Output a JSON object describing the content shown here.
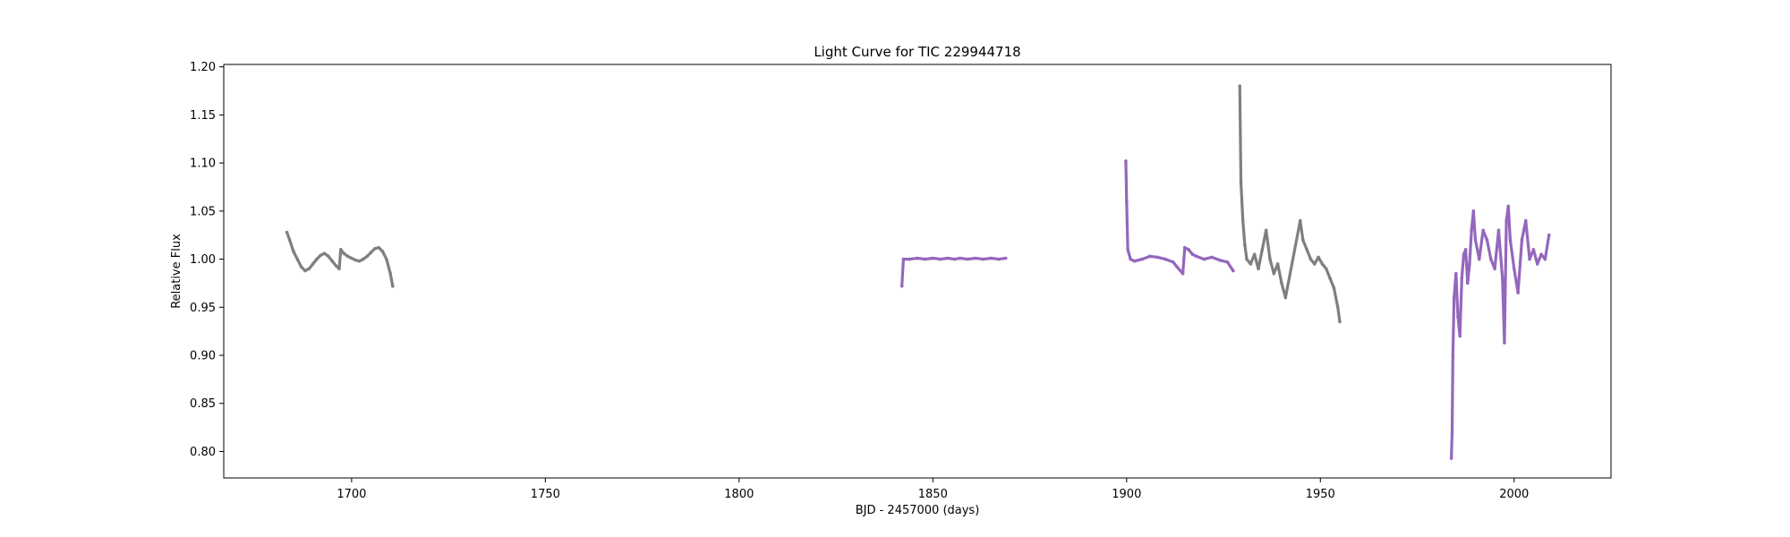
{
  "chart_data": {
    "type": "scatter",
    "title": "Light Curve for TIC 229944718",
    "xlabel": "BJD - 2457000 (days)",
    "ylabel": "Relative Flux",
    "xlim": [
      1667,
      2025
    ],
    "ylim": [
      0.7725,
      1.2025
    ],
    "xticks": [
      1700,
      1750,
      1800,
      1850,
      1900,
      1950,
      2000
    ],
    "yticks": [
      0.8,
      0.85,
      0.9,
      0.95,
      1.0,
      1.05,
      1.1,
      1.15,
      1.2
    ],
    "grid": false,
    "legend": "none",
    "colors": {
      "gray": "#7f7f7f",
      "purple": "#9467bd",
      "axis": "#000000"
    },
    "series": [
      {
        "color": "gray",
        "points": [
          [
            1683.3,
            1.028
          ],
          [
            1684.0,
            1.02
          ],
          [
            1685.0,
            1.008
          ],
          [
            1686.0,
            1.0
          ],
          [
            1687.0,
            0.992
          ],
          [
            1688.0,
            0.988
          ],
          [
            1689.0,
            0.99
          ],
          [
            1690.0,
            0.995
          ],
          [
            1691.0,
            1.0
          ],
          [
            1692.0,
            1.004
          ],
          [
            1693.0,
            1.006
          ],
          [
            1694.0,
            1.003
          ],
          [
            1695.0,
            0.998
          ],
          [
            1696.0,
            0.993
          ],
          [
            1696.8,
            0.99
          ],
          [
            1697.2,
            1.01
          ],
          [
            1698.0,
            1.006
          ],
          [
            1699.0,
            1.003
          ],
          [
            1700.0,
            1.001
          ],
          [
            1701.0,
            0.999
          ],
          [
            1702.0,
            0.998
          ],
          [
            1703.0,
            1.0
          ],
          [
            1704.0,
            1.003
          ],
          [
            1705.0,
            1.007
          ],
          [
            1706.0,
            1.011
          ],
          [
            1707.0,
            1.012
          ],
          [
            1708.0,
            1.008
          ],
          [
            1709.0,
            1.0
          ],
          [
            1710.0,
            0.985
          ],
          [
            1710.6,
            0.972
          ]
        ]
      },
      {
        "color": "purple",
        "points": [
          [
            1842.0,
            0.972
          ],
          [
            1842.4,
            1.0
          ],
          [
            1844.0,
            1.0
          ],
          [
            1846.0,
            1.001
          ],
          [
            1848.0,
            1.0
          ],
          [
            1850.0,
            1.001
          ],
          [
            1852.0,
            1.0
          ],
          [
            1853.8,
            1.001
          ],
          [
            1855.6,
            1.0
          ],
          [
            1857.0,
            1.001
          ],
          [
            1859.0,
            1.0
          ],
          [
            1861.0,
            1.001
          ],
          [
            1863.0,
            1.0
          ],
          [
            1865.0,
            1.001
          ],
          [
            1867.0,
            1.0
          ],
          [
            1868.8,
            1.001
          ]
        ]
      },
      {
        "color": "purple",
        "points": [
          [
            1899.8,
            1.102
          ],
          [
            1900.0,
            1.06
          ],
          [
            1900.3,
            1.01
          ],
          [
            1901.0,
            1.0
          ],
          [
            1902.0,
            0.998
          ],
          [
            1903.0,
            0.999
          ],
          [
            1904.0,
            1.0
          ],
          [
            1906.0,
            1.003
          ],
          [
            1908.0,
            1.002
          ],
          [
            1910.0,
            1.0
          ],
          [
            1912.0,
            0.997
          ],
          [
            1913.0,
            0.992
          ],
          [
            1914.5,
            0.985
          ],
          [
            1915.0,
            1.012
          ],
          [
            1916.0,
            1.01
          ],
          [
            1917.0,
            1.005
          ],
          [
            1918.0,
            1.003
          ],
          [
            1920.0,
            1.0
          ],
          [
            1922.0,
            1.002
          ],
          [
            1924.0,
            0.999
          ],
          [
            1926.0,
            0.997
          ],
          [
            1927.5,
            0.988
          ]
        ]
      },
      {
        "color": "gray",
        "points": [
          [
            1929.2,
            1.18
          ],
          [
            1929.5,
            1.08
          ],
          [
            1930.0,
            1.04
          ],
          [
            1930.5,
            1.015
          ],
          [
            1931.0,
            1.0
          ],
          [
            1932.0,
            0.995
          ],
          [
            1933.0,
            1.005
          ],
          [
            1934.0,
            0.99
          ],
          [
            1935.0,
            1.01
          ],
          [
            1936.0,
            1.03
          ],
          [
            1937.0,
            1.0
          ],
          [
            1938.0,
            0.985
          ],
          [
            1939.0,
            0.995
          ],
          [
            1940.0,
            0.975
          ],
          [
            1941.0,
            0.96
          ],
          [
            1944.8,
            1.04
          ],
          [
            1945.5,
            1.02
          ],
          [
            1946.5,
            1.01
          ],
          [
            1947.5,
            1.0
          ],
          [
            1948.5,
            0.995
          ],
          [
            1949.5,
            1.002
          ],
          [
            1950.5,
            0.995
          ],
          [
            1951.5,
            0.99
          ],
          [
            1952.5,
            0.98
          ],
          [
            1953.5,
            0.97
          ],
          [
            1954.5,
            0.95
          ],
          [
            1955.0,
            0.935
          ]
        ]
      },
      {
        "color": "purple",
        "points": [
          [
            1983.8,
            0.793
          ],
          [
            1984.0,
            0.82
          ],
          [
            1984.2,
            0.9
          ],
          [
            1984.5,
            0.96
          ],
          [
            1985.0,
            0.985
          ],
          [
            1985.5,
            0.94
          ],
          [
            1986.0,
            0.92
          ],
          [
            1986.5,
            0.98
          ],
          [
            1987.0,
            1.005
          ],
          [
            1987.5,
            1.01
          ],
          [
            1988.0,
            0.975
          ],
          [
            1988.5,
            0.995
          ],
          [
            1989.0,
            1.03
          ],
          [
            1989.5,
            1.05
          ],
          [
            1990.0,
            1.02
          ],
          [
            1991.0,
            1.0
          ],
          [
            1992.0,
            1.03
          ],
          [
            1993.0,
            1.02
          ],
          [
            1994.0,
            1.0
          ],
          [
            1995.0,
            0.99
          ],
          [
            1996.0,
            1.03
          ],
          [
            1997.0,
            0.98
          ],
          [
            1997.5,
            0.913
          ],
          [
            1998.0,
            1.04
          ],
          [
            1998.5,
            1.055
          ],
          [
            1999.0,
            1.02
          ],
          [
            2000.0,
            0.99
          ],
          [
            2001.0,
            0.965
          ],
          [
            2002.0,
            1.02
          ],
          [
            2003.0,
            1.04
          ],
          [
            2004.0,
            1.0
          ],
          [
            2005.0,
            1.01
          ],
          [
            2006.0,
            0.995
          ],
          [
            2007.0,
            1.005
          ],
          [
            2008.0,
            1.0
          ],
          [
            2009.0,
            1.025
          ]
        ]
      }
    ]
  }
}
